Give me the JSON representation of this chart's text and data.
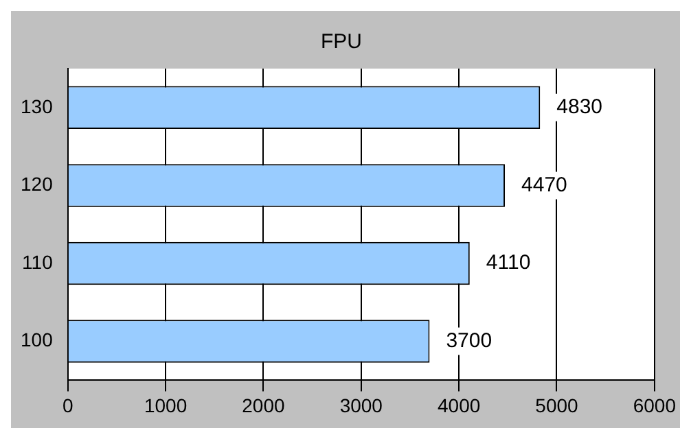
{
  "chart_data": {
    "type": "bar",
    "orientation": "horizontal",
    "title": "FPU",
    "categories": [
      "130",
      "120",
      "110",
      "100"
    ],
    "values": [
      4830,
      4470,
      4110,
      3700
    ],
    "color": "#99ccff",
    "xlim": [
      0,
      6000
    ],
    "xticks": [
      0,
      1000,
      2000,
      3000,
      4000,
      5000,
      6000
    ],
    "grid": "x",
    "data_labels": true
  }
}
